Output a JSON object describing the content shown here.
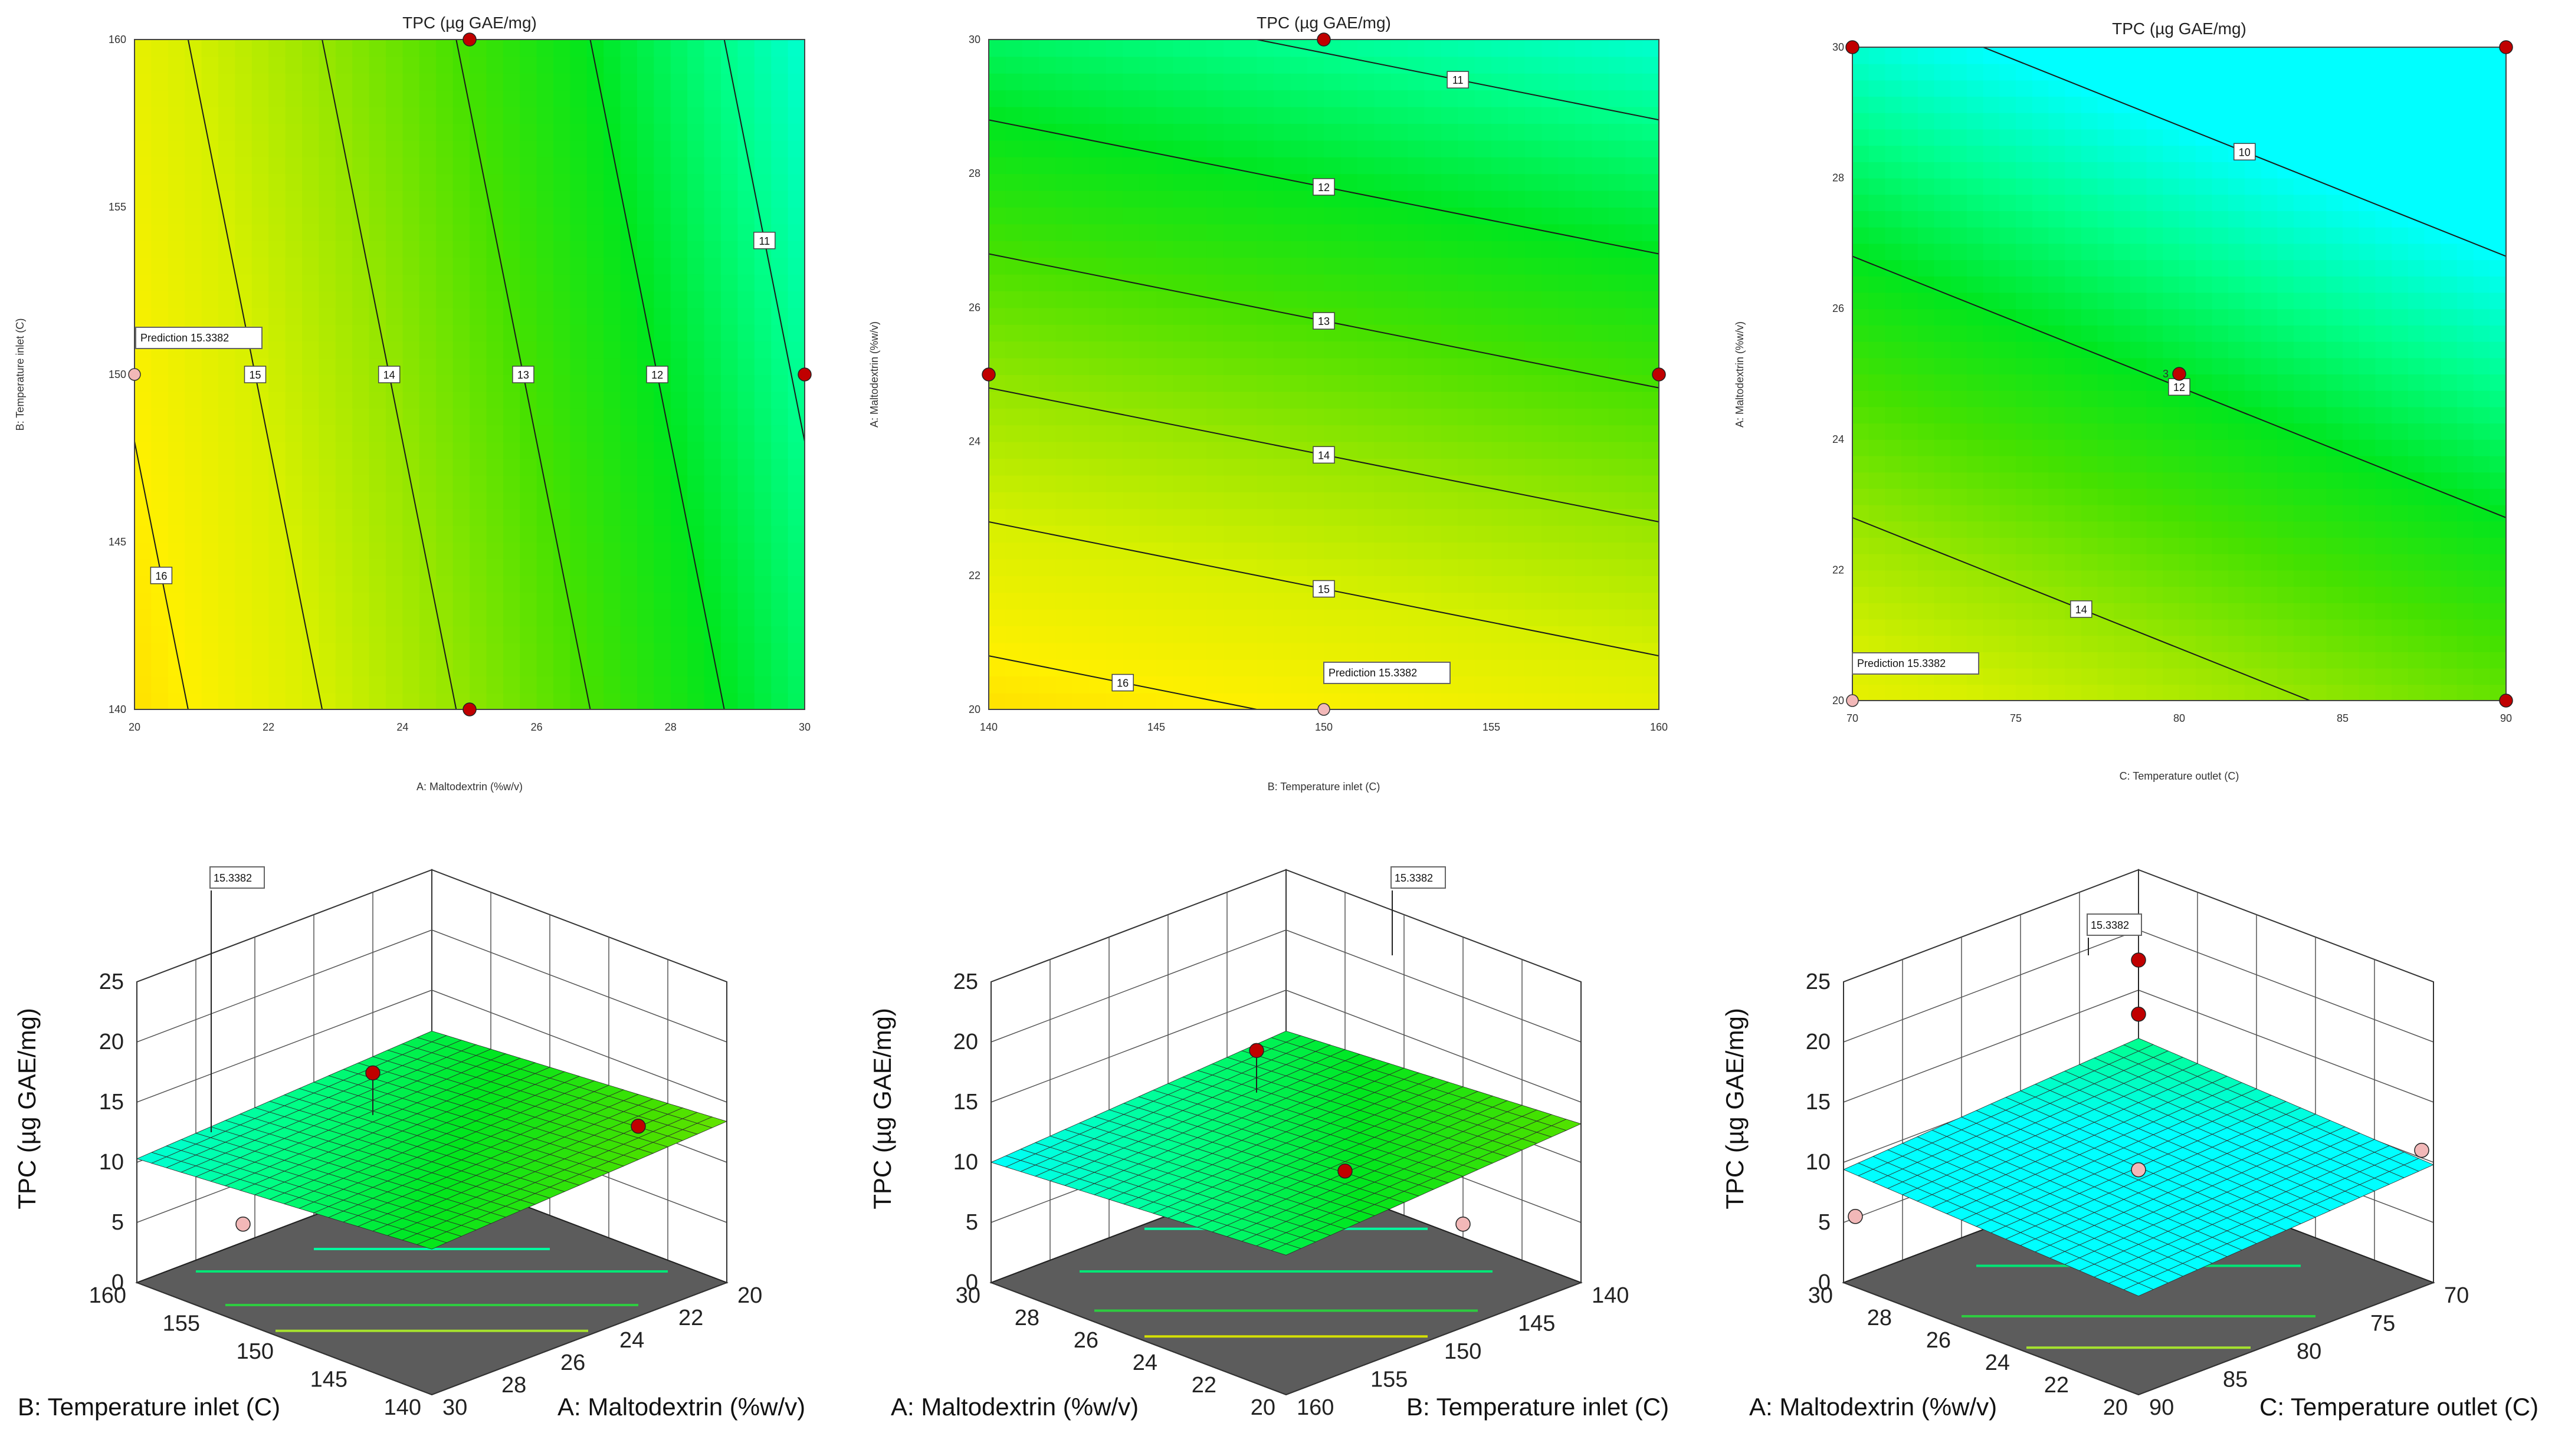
{
  "chart_data": [
    {
      "type": "contour",
      "title": "TPC (µg GAE/mg)",
      "xlabel": "A: Maltodextrin (%w/v)",
      "ylabel": "B: Temperature inlet (C)",
      "xlim": [
        20,
        30
      ],
      "ylim": [
        140,
        160
      ],
      "xticks": [
        "20",
        "22",
        "24",
        "26",
        "28",
        "30"
      ],
      "yticks": [
        "140",
        "145",
        "150",
        "155",
        "160"
      ],
      "model": {
        "c0": 16.4,
        "cx": -0.5,
        "cy": -0.05,
        "x0": 20,
        "y0": 140
      },
      "levels": [
        11,
        12,
        13,
        14,
        15,
        16
      ],
      "level_labels": [
        "11",
        "12",
        "13",
        "14",
        "15",
        "16"
      ],
      "design_points": [
        {
          "x": 25,
          "y": 160
        },
        {
          "x": 25,
          "y": 140
        },
        {
          "x": 30,
          "y": 150
        }
      ],
      "prediction": {
        "x": 20,
        "y": 150,
        "text": "Prediction  15.3382"
      }
    },
    {
      "type": "contour",
      "title": "TPC (µg GAE/mg)",
      "xlabel": "B: Temperature inlet (C)",
      "ylabel": "A: Maltodextrin (%w/v)",
      "xlim": [
        140,
        160
      ],
      "ylim": [
        20,
        30
      ],
      "xticks": [
        "140",
        "145",
        "150",
        "155",
        "160"
      ],
      "yticks": [
        "20",
        "22",
        "24",
        "26",
        "28",
        "30"
      ],
      "model": {
        "c0": 16.4,
        "cx": -0.05,
        "cy": -0.5,
        "x0": 140,
        "y0": 20
      },
      "levels": [
        11,
        12,
        13,
        14,
        15,
        16
      ],
      "level_labels": [
        "11",
        "12",
        "13",
        "14",
        "15",
        "16"
      ],
      "design_points": [
        {
          "x": 150,
          "y": 30
        },
        {
          "x": 140,
          "y": 25
        },
        {
          "x": 160,
          "y": 25
        }
      ],
      "prediction": {
        "x": 150,
        "y": 20,
        "text": "Prediction  15.3382"
      }
    },
    {
      "type": "contour",
      "title": "TPC (µg GAE/mg)",
      "xlabel": "C: Temperature outlet (C)",
      "ylabel": "A: Maltodextrin (%w/v)",
      "xlim": [
        70,
        90
      ],
      "ylim": [
        20,
        30
      ],
      "xticks": [
        "70",
        "75",
        "80",
        "85",
        "90"
      ],
      "yticks": [
        "20",
        "22",
        "24",
        "26",
        "28",
        "30"
      ],
      "model": {
        "c0": 15.4,
        "cx": -0.1,
        "cy": -0.5,
        "x0": 70,
        "y0": 20
      },
      "levels": [
        10,
        12,
        14
      ],
      "level_labels": [
        "10",
        "12",
        "14"
      ],
      "design_points": [
        {
          "x": 70,
          "y": 30
        },
        {
          "x": 90,
          "y": 30
        },
        {
          "x": 80,
          "y": 25
        },
        {
          "x": 90,
          "y": 20
        }
      ],
      "center_count": "3",
      "prediction": {
        "x": 70,
        "y": 20,
        "text": "Prediction  15.3382"
      }
    },
    {
      "type": "surface3d",
      "zlabel": "TPC (µg GAE/mg)",
      "zticks": [
        "0",
        "5",
        "10",
        "15",
        "20",
        "25"
      ],
      "left_axis_label": "B: Temperature inlet (C)",
      "left_ticks": [
        "160",
        "155",
        "150",
        "145",
        "140"
      ],
      "right_axis_label": "A: Maltodextrin (%w/v)",
      "right_ticks": [
        "20",
        "22",
        "24",
        "26",
        "28",
        "30"
      ],
      "prediction_label": "15.3382"
    },
    {
      "type": "surface3d",
      "zlabel": "TPC (µg GAE/mg)",
      "zticks": [
        "0",
        "5",
        "10",
        "15",
        "20",
        "25"
      ],
      "left_axis_label": "A: Maltodextrin (%w/v)",
      "left_ticks": [
        "30",
        "28",
        "26",
        "24",
        "22",
        "20"
      ],
      "right_axis_label": "B: Temperature inlet (C)",
      "right_ticks": [
        "140",
        "145",
        "150",
        "155",
        "160"
      ],
      "prediction_label": "15.3382"
    },
    {
      "type": "surface3d",
      "zlabel": "TPC (µg GAE/mg)",
      "zticks": [
        "0",
        "5",
        "10",
        "15",
        "20",
        "25"
      ],
      "left_axis_label": "A: Maltodextrin (%w/v)",
      "left_ticks": [
        "30",
        "28",
        "26",
        "24",
        "22",
        "20"
      ],
      "right_axis_label": "C: Temperature outlet (C)",
      "right_ticks": [
        "70",
        "75",
        "80",
        "85",
        "90"
      ],
      "prediction_label": "15.3382"
    }
  ]
}
